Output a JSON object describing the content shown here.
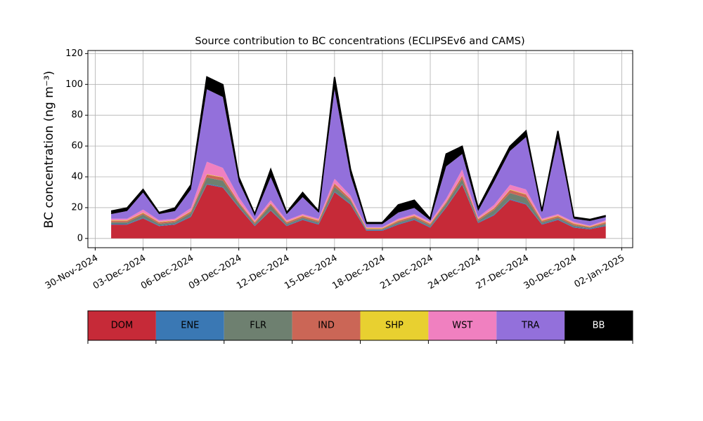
{
  "chart_data": {
    "type": "stacked_area",
    "title": "Source contribution to BC concentrations (ECLIPSEv6 and CAMS)",
    "ylabel": "BC concentration (ng m⁻³)",
    "x": [
      "2024-12-01",
      "2024-12-02",
      "2024-12-03",
      "2024-12-04",
      "2024-12-05",
      "2024-12-06",
      "2024-12-07",
      "2024-12-08",
      "2024-12-09",
      "2024-12-10",
      "2024-12-11",
      "2024-12-12",
      "2024-12-13",
      "2024-12-14",
      "2024-12-15",
      "2024-12-16",
      "2024-12-17",
      "2024-12-18",
      "2024-12-19",
      "2024-12-20",
      "2024-12-21",
      "2024-12-22",
      "2024-12-23",
      "2024-12-24",
      "2024-12-25",
      "2024-12-26",
      "2024-12-27",
      "2024-12-28",
      "2024-12-29",
      "2024-12-30",
      "2024-12-31",
      "2025-01-01"
    ],
    "series": [
      {
        "name": "DOM",
        "color": "#c62a38",
        "values": [
          9,
          9,
          13,
          8,
          9,
          14,
          35,
          33,
          20,
          8,
          18,
          8,
          12,
          9,
          30,
          22,
          5,
          5,
          9,
          12,
          7,
          20,
          35,
          10,
          15,
          25,
          22,
          9,
          12,
          7,
          6,
          8
        ]
      },
      {
        "name": "ENE",
        "color": "#3a78b4",
        "values": [
          0.5,
          0.5,
          0.5,
          0.5,
          0.5,
          0.5,
          0.5,
          0.5,
          0.5,
          0.5,
          0.5,
          0.5,
          0.5,
          0.5,
          0.5,
          0.5,
          0.5,
          0.5,
          0.5,
          0.5,
          0.5,
          0.5,
          0.5,
          0.5,
          0.5,
          0.5,
          0.5,
          0.5,
          0.5,
          0.5,
          0.5,
          0.5
        ]
      },
      {
        "name": "FLR",
        "color": "#6e8070",
        "values": [
          1,
          1,
          2,
          1,
          1,
          2,
          4,
          4,
          2,
          1,
          3,
          1,
          1,
          1,
          3,
          2,
          0.5,
          0.5,
          1,
          1,
          1,
          2,
          3,
          1,
          3,
          4,
          4,
          1,
          1,
          1,
          0.5,
          1
        ]
      },
      {
        "name": "IND",
        "color": "#cb6656",
        "values": [
          1,
          1,
          1,
          1,
          1,
          1,
          2,
          2,
          1,
          1,
          1,
          1,
          1,
          1,
          2,
          1,
          0.5,
          0.5,
          1,
          1,
          1,
          1,
          2,
          1,
          1,
          2,
          2,
          1,
          1,
          1,
          0.5,
          1
        ]
      },
      {
        "name": "SHP",
        "color": "#e8d030",
        "values": [
          0.3,
          0.3,
          0.3,
          0.3,
          0.3,
          0.3,
          0.3,
          0.3,
          0.3,
          0.3,
          0.3,
          0.3,
          0.3,
          0.3,
          0.3,
          0.3,
          0.3,
          0.3,
          0.3,
          0.3,
          0.3,
          0.3,
          0.3,
          0.3,
          0.3,
          0.3,
          0.3,
          0.3,
          0.3,
          0.3,
          0.3,
          0.3
        ]
      },
      {
        "name": "WST",
        "color": "#f080c0",
        "values": [
          1,
          1,
          2,
          1,
          1,
          2,
          8,
          6,
          3,
          1,
          2,
          1,
          1,
          1,
          3,
          2,
          0.5,
          0.5,
          1,
          1,
          1,
          2,
          4,
          1,
          2,
          3,
          3,
          1,
          1,
          1,
          0.5,
          1
        ]
      },
      {
        "name": "TRA",
        "color": "#9370db",
        "values": [
          3,
          5,
          11,
          4,
          5,
          12,
          47,
          46,
          10,
          3,
          15,
          4,
          11,
          4,
          58,
          13,
          2,
          2,
          4,
          4,
          1,
          21,
          10,
          4,
          15,
          22,
          34,
          4,
          49,
          2,
          3,
          2
        ]
      },
      {
        "name": "BB",
        "color": "#000000",
        "values": [
          2,
          2,
          2,
          1,
          2,
          3,
          8,
          8,
          3,
          1,
          5,
          1,
          3,
          1,
          8,
          4,
          1,
          1,
          5,
          5,
          1,
          8,
          5,
          2,
          3,
          3,
          4,
          1,
          5,
          1,
          1,
          1
        ]
      }
    ],
    "xlim": [
      "2024-11-29T13:00",
      "2025-01-02T16:30"
    ],
    "xticks": [
      {
        "value": "2024-11-30",
        "label": "30-Nov-2024"
      },
      {
        "value": "2024-12-03",
        "label": "03-Dec-2024"
      },
      {
        "value": "2024-12-06",
        "label": "06-Dec-2024"
      },
      {
        "value": "2024-12-09",
        "label": "09-Dec-2024"
      },
      {
        "value": "2024-12-12",
        "label": "12-Dec-2024"
      },
      {
        "value": "2024-12-15",
        "label": "15-Dec-2024"
      },
      {
        "value": "2024-12-18",
        "label": "18-Dec-2024"
      },
      {
        "value": "2024-12-21",
        "label": "21-Dec-2024"
      },
      {
        "value": "2024-12-24",
        "label": "24-Dec-2024"
      },
      {
        "value": "2024-12-27",
        "label": "27-Dec-2024"
      },
      {
        "value": "2024-12-30",
        "label": "30-Dec-2024"
      },
      {
        "value": "2025-01-02",
        "label": "02-Jan-2025"
      }
    ],
    "ylim": [
      -6,
      122
    ],
    "yticks": [
      0,
      20,
      40,
      60,
      80,
      100,
      120
    ],
    "grid": true,
    "legend": "bottom"
  }
}
